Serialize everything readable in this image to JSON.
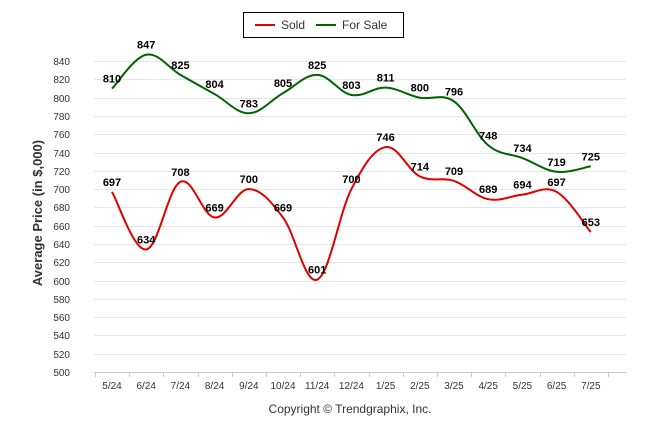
{
  "chart_data": {
    "type": "line",
    "categories": [
      "5/24",
      "6/24",
      "7/24",
      "8/24",
      "9/24",
      "10/24",
      "11/24",
      "12/24",
      "1/25",
      "2/25",
      "3/25",
      "4/25",
      "5/25",
      "6/25",
      "7/25"
    ],
    "series": [
      {
        "name": "Sold",
        "color": "#e00000",
        "values": [
          697,
          634,
          708,
          669,
          700,
          669,
          601,
          700,
          746,
          714,
          709,
          689,
          694,
          697,
          653
        ]
      },
      {
        "name": "For Sale",
        "color": "#006400",
        "values": [
          810,
          847,
          825,
          804,
          783,
          805,
          825,
          803,
          811,
          800,
          796,
          748,
          734,
          719,
          725
        ]
      }
    ],
    "ylabel": "Average Price (in $,000)",
    "ylim": [
      500,
      850
    ],
    "yticks": [
      500,
      520,
      540,
      560,
      580,
      600,
      620,
      640,
      660,
      680,
      700,
      720,
      740,
      760,
      780,
      800,
      820,
      840
    ],
    "grid": true,
    "legend_position": "top-center",
    "footer": "Copyright © Trendgraphix, Inc."
  }
}
